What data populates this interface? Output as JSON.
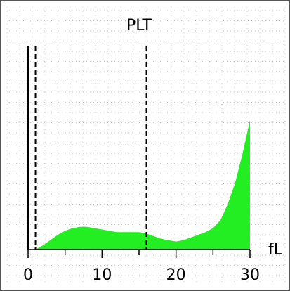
{
  "chart_data": {
    "type": "area",
    "title": "PLT",
    "xlabel": "fL",
    "ylabel": "",
    "xlim": [
      0,
      30
    ],
    "ylim": [
      0,
      1
    ],
    "x_ticks": [
      0,
      10,
      20,
      30
    ],
    "x_tick_labels": [
      "0",
      "10",
      "20",
      "30"
    ],
    "threshold_lines": [
      1,
      16
    ],
    "grid": true,
    "legend": "none",
    "fill_color": "#22ee22",
    "series": [
      {
        "x": [
          1,
          2,
          3,
          4,
          5,
          6,
          7,
          8,
          9,
          10,
          11,
          12,
          13,
          14,
          15,
          16,
          17,
          18,
          19,
          20,
          21,
          22,
          23,
          24,
          25,
          26,
          27,
          28,
          29,
          30
        ],
        "values": [
          0.0,
          0.03,
          0.07,
          0.11,
          0.14,
          0.16,
          0.17,
          0.17,
          0.16,
          0.15,
          0.14,
          0.13,
          0.13,
          0.13,
          0.13,
          0.12,
          0.1,
          0.08,
          0.07,
          0.06,
          0.07,
          0.09,
          0.11,
          0.13,
          0.16,
          0.22,
          0.34,
          0.5,
          0.72,
          0.97
        ]
      }
    ]
  }
}
